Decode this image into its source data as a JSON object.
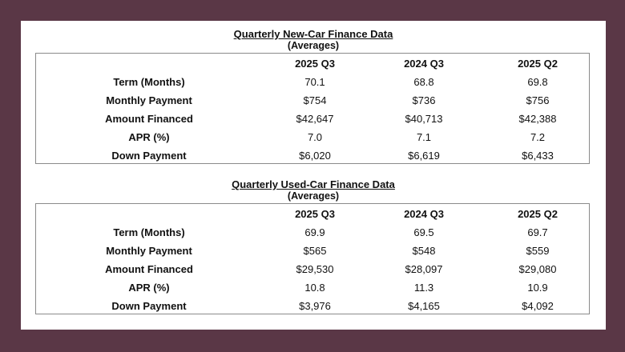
{
  "new_car": {
    "title": "Quarterly New-Car Finance Data",
    "subtitle": "(Averages)",
    "columns": [
      "",
      "2025 Q3",
      "2024 Q3",
      "2025 Q2"
    ],
    "rows": [
      [
        "Term (Months)",
        "70.1",
        "68.8",
        "69.8"
      ],
      [
        "Monthly Payment",
        "$754",
        "$736",
        "$756"
      ],
      [
        "Amount Financed",
        "$42,647",
        "$40,713",
        "$42,388"
      ],
      [
        "APR (%)",
        "7.0",
        "7.1",
        "7.2"
      ],
      [
        "Down Payment",
        "$6,020",
        "$6,619",
        "$6,433"
      ]
    ]
  },
  "used_car": {
    "title": "Quarterly Used-Car Finance Data",
    "subtitle": "(Averages)",
    "columns": [
      "",
      "2025 Q3",
      "2024 Q3",
      "2025 Q2"
    ],
    "rows": [
      [
        "Term (Months)",
        "69.9",
        "69.5",
        "69.7"
      ],
      [
        "Monthly Payment",
        "$565",
        "$548",
        "$559"
      ],
      [
        "Amount Financed",
        "$29,530",
        "$28,097",
        "$29,080"
      ],
      [
        "APR (%)",
        "10.8",
        "11.3",
        "10.9"
      ],
      [
        "Down Payment",
        "$3,976",
        "$4,165",
        "$4,092"
      ]
    ]
  },
  "colors": {
    "frame_background": "#5a3746",
    "card_background": "#ffffff",
    "table_border": "#8a8a8a"
  }
}
